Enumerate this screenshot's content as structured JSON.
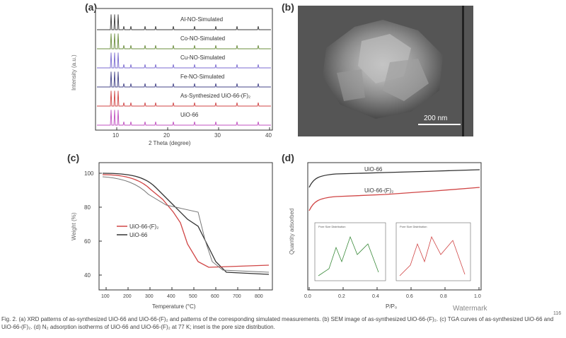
{
  "panels": {
    "a": {
      "label": "(a)",
      "y_label": "Intensity (a.u.)",
      "x_label": "2 Theta (degree)",
      "x_ticks": [
        "10",
        "20",
        "30",
        "40"
      ],
      "traces": [
        {
          "label": "Al-NO-Simulated",
          "color": "#3a3a3a"
        },
        {
          "label": "Co-NO-Simulated",
          "color": "#6b8e3d"
        },
        {
          "label": "Cu-NO-Simulated",
          "color": "#7b6bd0"
        },
        {
          "label": "Fe-NO-Simulated",
          "color": "#444488"
        },
        {
          "label": "As-Synthesized UiO-66-(F)₂",
          "color": "#d04545"
        },
        {
          "label": "UiO-66",
          "color": "#c050c0"
        }
      ]
    },
    "b": {
      "label": "(b)",
      "scale_bar": "200 nm"
    },
    "c": {
      "label": "(c)",
      "y_label": "Weight (%)",
      "x_label": "Temperature (°C)",
      "y_ticks": [
        "100",
        "80",
        "60",
        "40"
      ],
      "x_ticks": [
        "100",
        "200",
        "300",
        "400",
        "500",
        "600",
        "700",
        "800"
      ],
      "legend": [
        "UiO-66-(F)₂",
        "UiO-66"
      ]
    },
    "d": {
      "label": "(d)",
      "y_label": "Quantity adsorbed",
      "x_label": "P/P₀",
      "x_ticks": [
        "0.0",
        "0.2",
        "0.4",
        "0.6",
        "0.8",
        "1.0"
      ],
      "series_labels": [
        "UiO-66",
        "UiO-66-(F)₂"
      ],
      "inset_titles": [
        "Pore Size Distribution",
        "Pore Size Distribution"
      ]
    }
  },
  "caption": "Fig. 2. (a) XRD patterns of as-synthesized UiO-66 and UiO-66-(F)₂ and patterns of the corresponding simulated measurements. (b) SEM image of as-synthesized UiO-66-(F)₂. (c) TGA curves of as-synthesized UiO-66 and UiO-66-(F)₂. (d) N₂ adsorption isotherms of UiO-66 and UiO-66-(F)₂ at 77 K; inset is the pore size distribution.",
  "watermark": "Watermark",
  "figure_number": "116"
}
